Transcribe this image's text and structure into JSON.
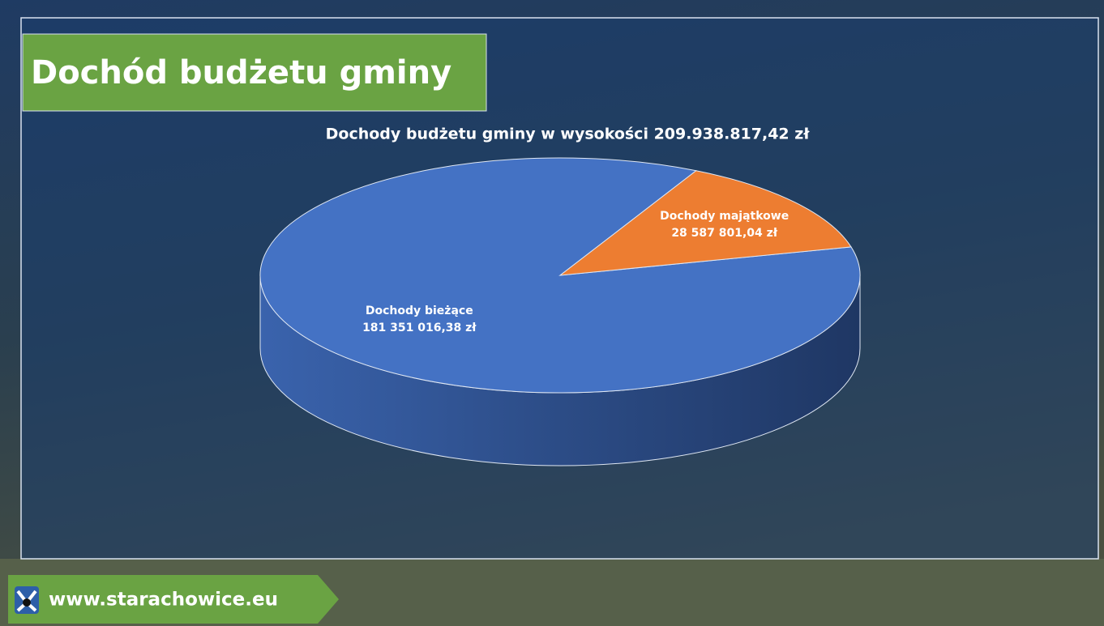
{
  "header": {
    "title": "Dochód budżetu gminy"
  },
  "footer": {
    "url": "www.starachowice.eu"
  },
  "chart_data": {
    "type": "pie",
    "title": "Dochody budżetu gminy w wysokości 209.938.817,42 zł",
    "categories": [
      "Dochody bieżące",
      "Dochody majątkowe"
    ],
    "values": [
      181351016.38,
      28587801.04
    ],
    "value_labels": [
      "181 351 016,38 zł",
      "28 587 801,04 zł"
    ],
    "colors": [
      "#4472c4",
      "#ed7d31"
    ]
  }
}
